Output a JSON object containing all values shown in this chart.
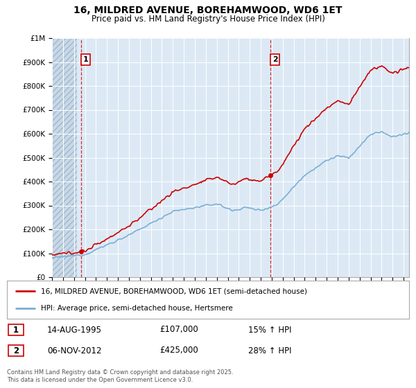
{
  "title": "16, MILDRED AVENUE, BOREHAMWOOD, WD6 1ET",
  "subtitle": "Price paid vs. HM Land Registry's House Price Index (HPI)",
  "legend_line1": "16, MILDRED AVENUE, BOREHAMWOOD, WD6 1ET (semi-detached house)",
  "legend_line2": "HPI: Average price, semi-detached house, Hertsmere",
  "footer": "Contains HM Land Registry data © Crown copyright and database right 2025.\nThis data is licensed under the Open Government Licence v3.0.",
  "sale1_label": "1",
  "sale1_date": "14-AUG-1995",
  "sale1_price": "£107,000",
  "sale1_hpi": "15% ↑ HPI",
  "sale1_year": 1995.62,
  "sale1_value": 107000,
  "sale2_label": "2",
  "sale2_date": "06-NOV-2012",
  "sale2_price": "£425,000",
  "sale2_hpi": "28% ↑ HPI",
  "sale2_year": 2012.85,
  "sale2_value": 425000,
  "ylim_min": 0,
  "ylim_max": 1000000,
  "xlim_min": 1993,
  "xlim_max": 2025.5,
  "house_color": "#cc0000",
  "hpi_color": "#7aafd4",
  "background_color": "#ffffff",
  "plot_bg_color": "#dce9f5",
  "grid_color": "#ffffff"
}
